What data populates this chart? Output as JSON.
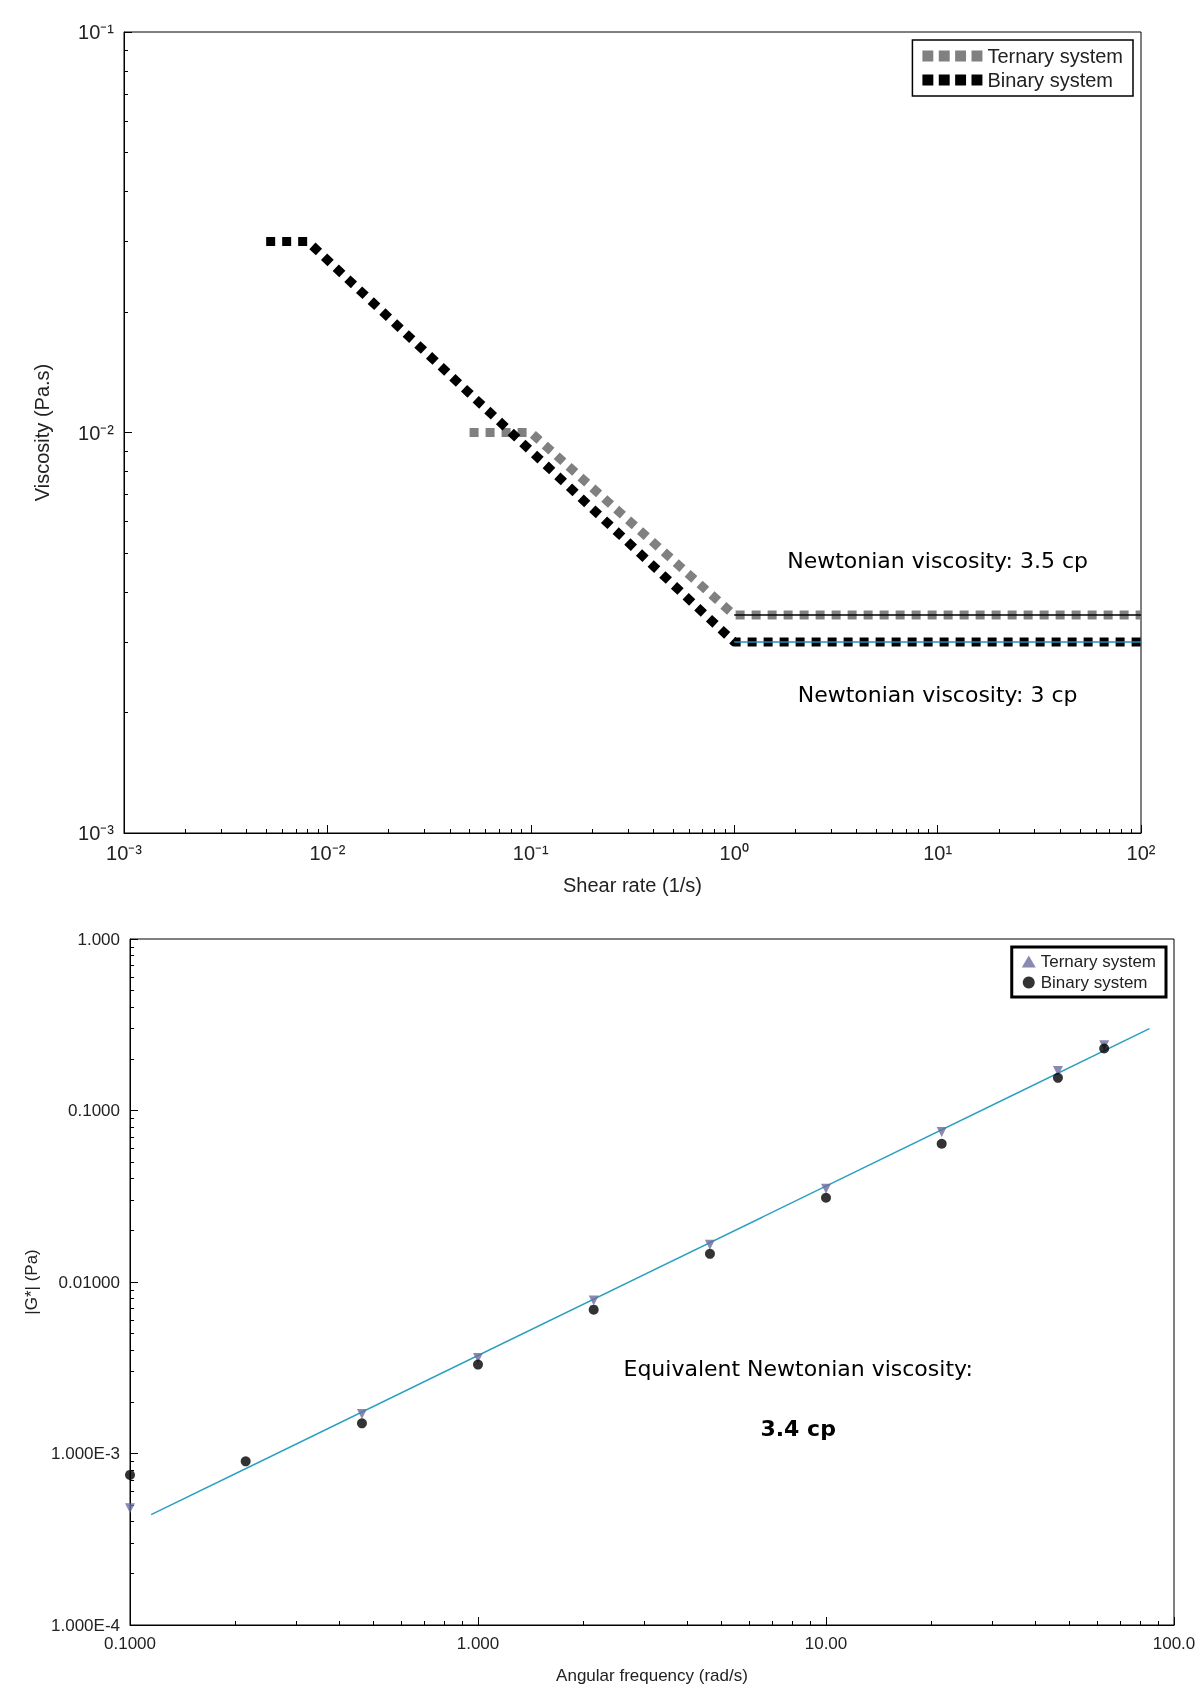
{
  "chart_data": [
    {
      "type": "line",
      "xlabel": "Shear rate (1/s)",
      "ylabel": "Viscosity (Pa.s)",
      "log": "xy",
      "xlim": [
        0.001,
        100
      ],
      "ylim": [
        0.001,
        0.1
      ],
      "xticks": [
        {
          "value": 0.001,
          "label": "10⁻³"
        },
        {
          "value": 0.01,
          "label": "10⁻²"
        },
        {
          "value": 0.1,
          "label": "10⁻¹"
        },
        {
          "value": 1,
          "label": "10⁰"
        },
        {
          "value": 10,
          "label": "10¹"
        },
        {
          "value": 100,
          "label": "10²"
        }
      ],
      "yticks": [
        {
          "value": 0.001,
          "label": "10⁻³"
        },
        {
          "value": 0.01,
          "label": "10⁻²"
        },
        {
          "value": 0.1,
          "label": "10⁻¹"
        }
      ],
      "grid": false,
      "legend": "top right",
      "line_style": "dotted",
      "marker": "none",
      "series": [
        {
          "name": "Ternary system",
          "color": "#808080",
          "x": [
            0.05,
            0.1,
            1,
            100
          ],
          "values": [
            0.01,
            0.01,
            0.0035,
            0.0035
          ]
        },
        {
          "name": "Binary system",
          "color": "#000000",
          "x": [
            0.005,
            0.008,
            1,
            100
          ],
          "values": [
            0.03,
            0.03,
            0.003,
            0.003
          ]
        },
        {
          "type": "line",
          "line_style": "solid",
          "color": "#000000",
          "x": [
            1,
            100
          ],
          "values": [
            0.0035,
            0.0035
          ]
        },
        {
          "type": "line",
          "line_style": "solid",
          "color": "#1f8fbf",
          "x": [
            1,
            100
          ],
          "values": [
            0.003,
            0.003
          ]
        }
      ],
      "annotations": [
        {
          "text": "Newtonian viscosity: 3.5 cp",
          "x": 10,
          "y": 0.0035
        },
        {
          "text": "Newtonian viscosity: 3 cp",
          "x": 10,
          "y": 0.003
        }
      ]
    },
    {
      "type": "scatter",
      "xlabel": "Angular frequency (rad/s)",
      "ylabel": "|G*| (Pa)",
      "log": "xy",
      "xlim": [
        0.1,
        100
      ],
      "ylim": [
        0.0001,
        1
      ],
      "xticks": [
        {
          "value": 0.1,
          "label": "0.1000"
        },
        {
          "value": 1,
          "label": "1.000"
        },
        {
          "value": 10,
          "label": "10.00"
        },
        {
          "value": 100,
          "label": "100.0"
        }
      ],
      "yticks": [
        {
          "value": 0.0001,
          "label": "1.000E-4"
        },
        {
          "value": 0.001,
          "label": "1.000E-3"
        },
        {
          "value": 0.01,
          "label": "0.01000"
        },
        {
          "value": 0.1,
          "label": "0.1000"
        },
        {
          "value": 1,
          "label": "1.000"
        }
      ],
      "grid": false,
      "legend": "top right",
      "series": [
        {
          "name": "Ternary system",
          "color": "#6b6b9e",
          "marker": "triangle",
          "x": [
            0.1,
            0.464,
            1,
            2.15,
            4.64,
            10,
            21.5,
            46.4,
            63
          ],
          "values": [
            0.00048,
            0.0017,
            0.0036,
            0.0078,
            0.0165,
            0.035,
            0.075,
            0.17,
            0.24
          ]
        },
        {
          "name": "Binary system",
          "color": "#000000",
          "marker": "circle",
          "x": [
            0.1,
            0.215,
            0.464,
            1,
            2.15,
            4.64,
            10,
            21.5,
            46.4,
            63
          ],
          "values": [
            0.00075,
            0.0009,
            0.0015,
            0.0033,
            0.0069,
            0.0146,
            0.031,
            0.064,
            0.155,
            0.23
          ]
        },
        {
          "type": "line",
          "color": "#2a9fc0",
          "marker": "none",
          "line_style": "solid",
          "x": [
            0.115,
            85
          ],
          "values": [
            0.00044,
            0.3
          ]
        }
      ],
      "annotations": [
        "Equivalent Newtonian viscosity:",
        "3.4 cp"
      ]
    }
  ]
}
